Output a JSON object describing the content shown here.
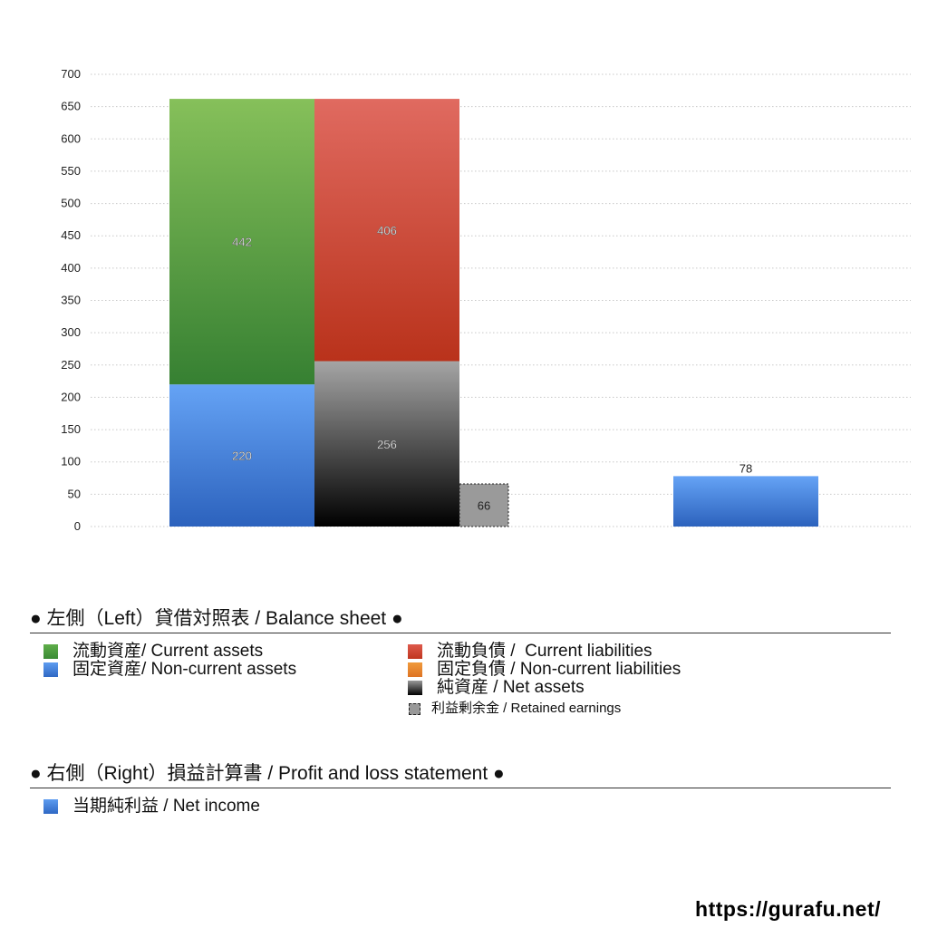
{
  "chart_data": {
    "type": "bar",
    "stacked": true,
    "ylim": [
      0,
      700
    ],
    "yticks": [
      0,
      50,
      100,
      150,
      200,
      250,
      300,
      350,
      400,
      450,
      500,
      550,
      600,
      650,
      700
    ],
    "grid": true,
    "bars": [
      {
        "group": "left",
        "segments": [
          {
            "name": "固定資産/ Non-current assets",
            "value": 220,
            "color": "#3f7fdc"
          },
          {
            "name": "流動資産/ Current assets",
            "value": 442,
            "color": "#3f8f3a"
          }
        ]
      },
      {
        "group": "left",
        "segments": [
          {
            "name": "純資産 / Net assets",
            "value": 256,
            "color": "#333333"
          },
          {
            "name": "流動負債 /  Current liabilities",
            "value": 406,
            "color": "#c23d2a"
          }
        ]
      },
      {
        "group": "left",
        "narrow": true,
        "segments": [
          {
            "name": "利益剰余金 / Retained earnings",
            "value": 66,
            "color": "#999999"
          }
        ]
      },
      {
        "group": "right",
        "segments": [
          {
            "name": "当期純利益 / Net income",
            "value": 78,
            "color": "#3f7fdc"
          }
        ]
      }
    ]
  },
  "legend": {
    "left_title": "● 左側（Left）貸借対照表 / Balance sheet ●",
    "left_items": [
      {
        "label": "流動資産/ Current assets",
        "color": "#3f9a3a"
      },
      {
        "label": "固定資産/ Non-current assets",
        "color": "#3f7fdc"
      },
      {
        "label": "流動負債 /  Current liabilities",
        "color": "#d0432f"
      },
      {
        "label": "固定負債 / Non-current liabilities",
        "color": "#e8862c"
      },
      {
        "label": "純資産 / Net assets",
        "color": "#222222"
      },
      {
        "label": "利益剰余金 / Retained earnings",
        "color": "#999999"
      }
    ],
    "right_title": "● 右側（Right）損益計算書 / Profit and loss statement ●",
    "right_items": [
      {
        "label": "当期純利益 / Net income",
        "color": "#3f7fdc"
      }
    ]
  },
  "footer": {
    "url": "https://gurafu.net/"
  }
}
